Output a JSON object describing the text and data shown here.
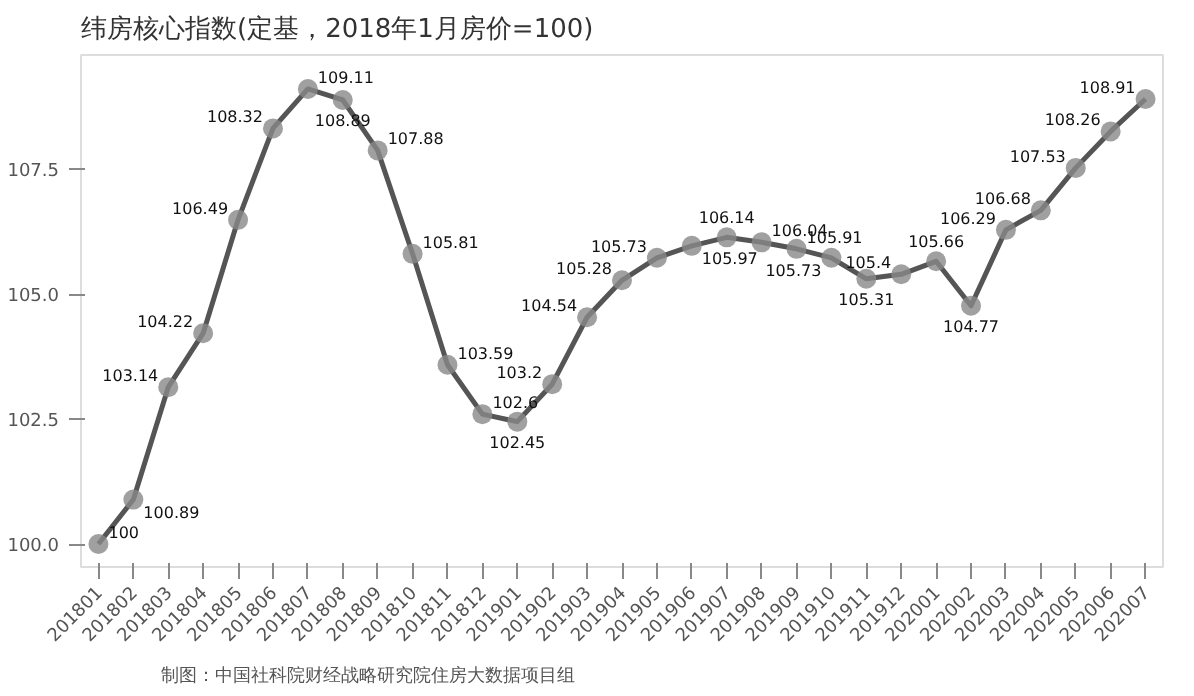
{
  "chart_data": {
    "type": "line",
    "title": "纬房核心指数(定基，2018年1月房价=100)",
    "categories": [
      "201801",
      "201802",
      "201803",
      "201804",
      "201805",
      "201806",
      "201807",
      "201808",
      "201809",
      "201810",
      "201811",
      "201812",
      "201901",
      "201902",
      "201903",
      "201904",
      "201905",
      "201906",
      "201907",
      "201908",
      "201909",
      "201910",
      "201911",
      "201912",
      "202001",
      "202002",
      "202003",
      "202004",
      "202005",
      "202006",
      "202007"
    ],
    "series": [
      {
        "color": "#555555",
        "values": [
          100,
          100.89,
          103.14,
          104.22,
          106.49,
          108.32,
          109.11,
          108.89,
          107.88,
          105.81,
          103.59,
          102.6,
          102.45,
          103.2,
          104.54,
          105.28,
          105.73,
          105.97,
          106.14,
          106.04,
          105.91,
          105.73,
          105.31,
          105.4,
          105.66,
          104.77,
          106.29,
          106.68,
          107.53,
          108.26,
          108.91
        ]
      }
    ],
    "ylim": [
      99.54,
      109.79
    ],
    "yticks": [
      {
        "value": 100,
        "label": "100.0"
      },
      102.5,
      {
        "value": 105,
        "label": "105.0"
      },
      107.5
    ],
    "marker": "circle",
    "data_labels": true,
    "grid": false,
    "annotations": [
      "制图：中国社科院财经战略研究院住房大数据项目组"
    ]
  }
}
